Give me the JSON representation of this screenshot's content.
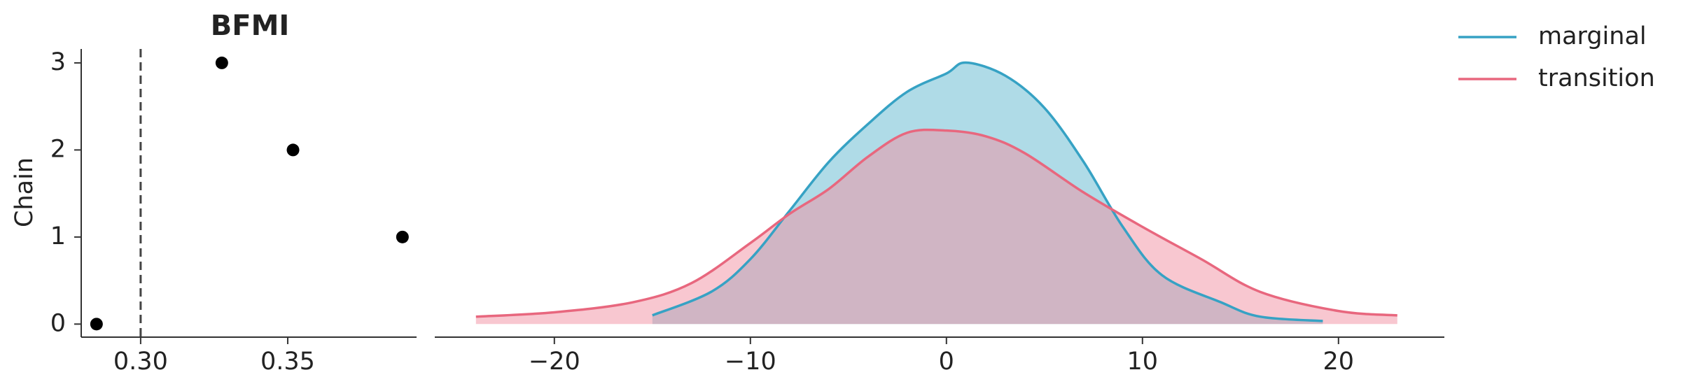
{
  "chart_data": [
    {
      "type": "scatter",
      "title": "BFMI",
      "ylabel": "Chain",
      "x": [
        0.285,
        0.389,
        0.3518,
        0.3276
      ],
      "values": [
        0,
        1,
        2,
        3
      ],
      "color": "#000000",
      "xlim": [
        0.2798,
        0.3938
      ],
      "xticks": [
        {
          "value": 0.3,
          "label": "0.30"
        },
        {
          "value": 0.35,
          "label": "0.35"
        }
      ],
      "ylim": [
        -0.15,
        3.16
      ],
      "yticks": [
        0,
        1,
        2,
        3
      ],
      "vline": 0.3
    },
    {
      "type": "area",
      "legend": "upper right",
      "xlim": [
        -26.1,
        25.4
      ],
      "ylim": [
        -0.003,
        0.062
      ],
      "xticks": [
        {
          "value": -20,
          "label": "−20"
        },
        {
          "value": -10,
          "label": "−10"
        },
        0,
        10,
        20
      ],
      "series": [
        {
          "name": "marginal",
          "color": "#36a2c4",
          "fill": "#5fb8d0",
          "x": [
            -15,
            -12,
            -10,
            -8,
            -6,
            -4,
            -2,
            0,
            1,
            3,
            5,
            7,
            9,
            11,
            14,
            16,
            19.2
          ],
          "values": [
            0.002,
            0.0074,
            0.0149,
            0.026,
            0.0372,
            0.0459,
            0.0533,
            0.0575,
            0.06,
            0.057,
            0.0496,
            0.0372,
            0.0223,
            0.0112,
            0.005,
            0.0017,
            0.0007
          ]
        },
        {
          "name": "transition",
          "color": "#e8677e",
          "fill": "#f28fa2",
          "x": [
            -24,
            -20,
            -16,
            -13,
            -10,
            -8,
            -6,
            -4,
            -2,
            0,
            2,
            4,
            7,
            10,
            13,
            16,
            20,
            23
          ],
          "values": [
            0.0017,
            0.0027,
            0.005,
            0.0094,
            0.0186,
            0.0253,
            0.031,
            0.0384,
            0.0439,
            0.0444,
            0.0431,
            0.0392,
            0.0302,
            0.0223,
            0.0149,
            0.0074,
            0.003,
            0.002
          ]
        }
      ]
    }
  ]
}
